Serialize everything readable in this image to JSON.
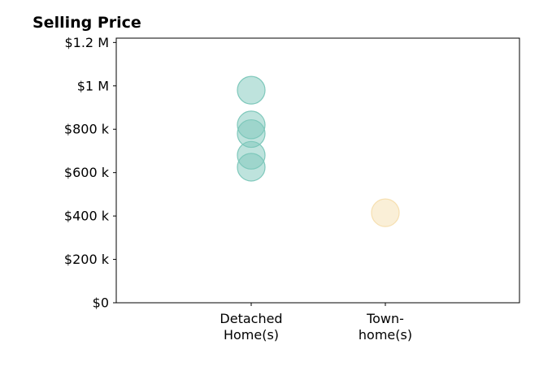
{
  "chart_data": {
    "type": "scatter",
    "title": "Selling Price",
    "xlabel": "",
    "ylabel": "",
    "categories": [
      "Detached\nHome(s)",
      "Town-\nhome(s)"
    ],
    "ylim": [
      0,
      1220000
    ],
    "y_ticks": [
      {
        "value": 0,
        "label": "$0"
      },
      {
        "value": 200000,
        "label": "$200 k"
      },
      {
        "value": 400000,
        "label": "$400 k"
      },
      {
        "value": 600000,
        "label": "$600 k"
      },
      {
        "value": 800000,
        "label": "$800 k"
      },
      {
        "value": 1000000,
        "label": "$1 M"
      },
      {
        "value": 1200000,
        "label": "$1.2 M"
      }
    ],
    "series": [
      {
        "category": "Detached\nHome(s)",
        "values": [
          980000,
          820000,
          780000,
          680000,
          625000
        ],
        "color": "#7ec8bb"
      },
      {
        "category": "Town-\nhome(s)",
        "values": [
          415000
        ],
        "color": "#f6dfb0"
      }
    ],
    "grid": false,
    "legend": "none"
  }
}
